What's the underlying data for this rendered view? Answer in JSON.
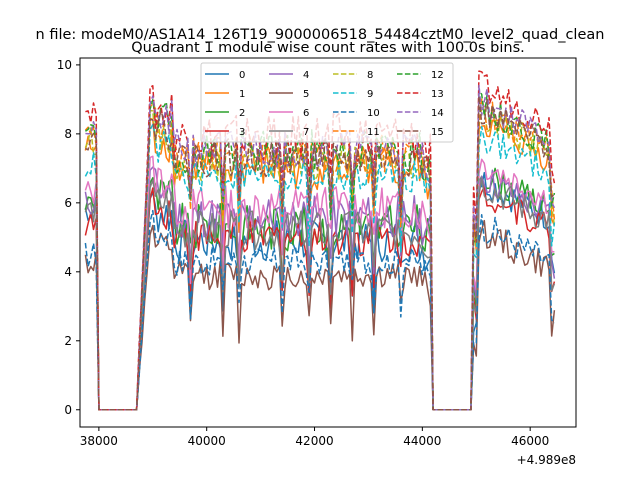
{
  "chart_data": {
    "type": "line",
    "suptitle": "n file: modeM0/AS1A14_126T19_9000006518_54484cztM0_level2_quad_clean",
    "title": "Quadrant 1 module wise count rates with 100.0s bins.",
    "xlabel": "",
    "ylabel": "",
    "x_offset_label": "+4.989e8",
    "xlim": [
      37650,
      46850
    ],
    "ylim": [
      -0.5,
      10.2
    ],
    "x_ticks": [
      38000,
      40000,
      42000,
      44000,
      46000
    ],
    "x_tick_labels": [
      "38000",
      "40000",
      "42000",
      "44000",
      "46000"
    ],
    "y_ticks": [
      0,
      2,
      4,
      6,
      8,
      10
    ],
    "y_tick_labels": [
      "0",
      "2",
      "4",
      "6",
      "8",
      "10"
    ],
    "grid": false,
    "legend_position": "top-center",
    "legend_columns": 4,
    "gaps": [
      [
        37950,
        38750
      ],
      [
        44150,
        44950
      ]
    ],
    "x_range": [
      37750,
      46450
    ],
    "x_step": 50,
    "series": [
      {
        "name": "0",
        "color": "#1f77b4",
        "dash": "solid",
        "base": 4.9,
        "amp": 0.45,
        "pre": 5.8,
        "post": 5.9
      },
      {
        "name": "1",
        "color": "#ff7f0e",
        "dash": "solid",
        "base": 7.0,
        "amp": 0.45,
        "pre": 7.6,
        "post": 7.6
      },
      {
        "name": "2",
        "color": "#2ca02c",
        "dash": "solid",
        "base": 5.3,
        "amp": 0.5,
        "pre": 6.0,
        "post": 6.1
      },
      {
        "name": "3",
        "color": "#d62728",
        "dash": "solid",
        "base": 5.0,
        "amp": 0.4,
        "pre": 5.4,
        "post": 5.6
      },
      {
        "name": "4",
        "color": "#9467bd",
        "dash": "solid",
        "base": 5.6,
        "amp": 0.45,
        "pre": 6.0,
        "post": 6.0
      },
      {
        "name": "5",
        "color": "#8c564b",
        "dash": "solid",
        "base": 3.9,
        "amp": 0.3,
        "pre": 4.3,
        "post": 4.4
      },
      {
        "name": "6",
        "color": "#e377c2",
        "dash": "solid",
        "base": 5.9,
        "amp": 0.45,
        "pre": 6.3,
        "post": 6.4
      },
      {
        "name": "7",
        "color": "#7f7f7f",
        "dash": "solid",
        "base": 5.2,
        "amp": 0.4,
        "pre": 5.8,
        "post": 5.8
      },
      {
        "name": "8",
        "color": "#bcbd22",
        "dash": "dashed",
        "base": 7.2,
        "amp": 0.4,
        "pre": 7.8,
        "post": 7.8
      },
      {
        "name": "9",
        "color": "#17becf",
        "dash": "dashed",
        "base": 6.8,
        "amp": 0.35,
        "pre": 7.1,
        "post": 7.2
      },
      {
        "name": "10",
        "color": "#1f77b4",
        "dash": "dashed",
        "base": 4.3,
        "amp": 0.3,
        "pre": 4.5,
        "post": 4.6
      },
      {
        "name": "11",
        "color": "#ff7f0e",
        "dash": "dashed",
        "base": 7.4,
        "amp": 0.4,
        "pre": 7.9,
        "post": 7.9
      },
      {
        "name": "12",
        "color": "#2ca02c",
        "dash": "dashed",
        "base": 7.5,
        "amp": 0.45,
        "pre": 8.0,
        "post": 8.0
      },
      {
        "name": "13",
        "color": "#d62728",
        "dash": "dashed",
        "base": 7.9,
        "amp": 0.5,
        "pre": 8.7,
        "post": 8.6
      },
      {
        "name": "14",
        "color": "#9467bd",
        "dash": "dashed",
        "base": 7.6,
        "amp": 0.4,
        "pre": 8.2,
        "post": 8.2
      },
      {
        "name": "15",
        "color": "#8c564b",
        "dash": "dashed",
        "base": 7.3,
        "amp": 0.4,
        "pre": 7.9,
        "post": 7.9
      }
    ]
  }
}
